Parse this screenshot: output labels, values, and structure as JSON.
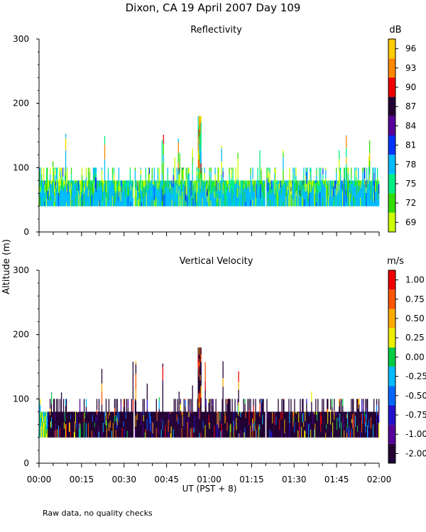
{
  "figure": {
    "title": "Dixon, CA 19 April 2007  Day 109",
    "y_axis_label": "Altitude (m)",
    "x_axis_label": "UT  (PST + 8)",
    "footnote": "Raw data, no quality checks"
  },
  "chart_data": [
    {
      "type": "heatmap",
      "title": "Reflectivity",
      "xlabel": "UT  (PST + 8)",
      "ylabel": "Altitude (m)",
      "xlim_minutes": [
        0,
        120
      ],
      "ylim": [
        0,
        300
      ],
      "x_ticks": [
        "00:00",
        "00:15",
        "00:30",
        "00:45",
        "01:00",
        "01:15",
        "01:30",
        "01:45",
        "02:00"
      ],
      "y_ticks": [
        0,
        100,
        200,
        300
      ],
      "colorbar": {
        "unit": "dB",
        "labels": [
          "69",
          "72",
          "75",
          "78",
          "81",
          "84",
          "87",
          "90",
          "93",
          "96"
        ],
        "colors": [
          "#ccff00",
          "#33dd00",
          "#00ee88",
          "#00bbff",
          "#0033ff",
          "#550099",
          "#220033",
          "#ee0000",
          "#ff8800",
          "#ffcc00"
        ]
      },
      "echo_layer": {
        "base_altitude": 40,
        "layer_top": 80,
        "max_plume_top": 180,
        "max_plume_time_minutes": 56.5,
        "dominant_palette": [
          "#00ee88",
          "#33dd00",
          "#ccff00",
          "#00bbff"
        ]
      }
    },
    {
      "type": "heatmap",
      "title": "Vertical Velocity",
      "xlabel": "UT  (PST + 8)",
      "ylabel": "Altitude (m)",
      "xlim_minutes": [
        0,
        120
      ],
      "ylim": [
        0,
        300
      ],
      "x_ticks": [
        "00:00",
        "00:15",
        "00:30",
        "00:45",
        "01:00",
        "01:15",
        "01:30",
        "01:45",
        "02:00"
      ],
      "y_ticks": [
        0,
        100,
        200,
        300
      ],
      "colorbar": {
        "unit": "m/s",
        "labels": [
          "-2.00",
          "-1.00",
          "-0.75",
          "-0.50",
          "-0.25",
          "0.00",
          "0.25",
          "0.50",
          "0.75",
          "1.00"
        ],
        "colors": [
          "#220033",
          "#550099",
          "#2211cc",
          "#0066ff",
          "#00bbff",
          "#00cc44",
          "#eeee00",
          "#ffaa00",
          "#ff5500",
          "#ee0000"
        ]
      },
      "echo_layer": {
        "base_altitude": 40,
        "layer_top": 80,
        "max_plume_top": 180,
        "max_plume_time_minutes": 56.5,
        "dominant_palette": [
          "#220033",
          "#220033",
          "#220033",
          "#550099"
        ]
      }
    }
  ]
}
